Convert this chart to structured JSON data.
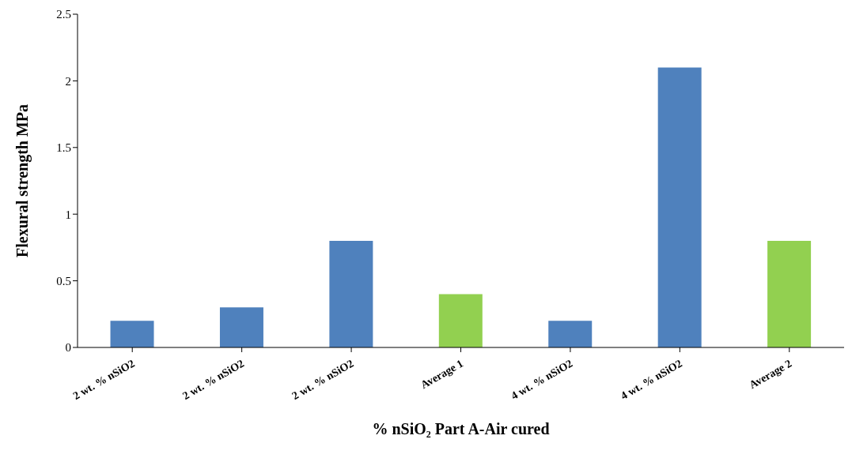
{
  "chart_data": {
    "type": "bar",
    "xlabel": "% nSiO₂ Part A-Air cured",
    "ylabel": "Flexural strength MPa",
    "categories": [
      "2 wt. % nSiO2",
      "2 wt. % nSiO2",
      "2 wt. % nSiO2",
      "Average 1",
      "4 wt. % nSiO2",
      "4 wt. % nSiO2",
      "Average 2"
    ],
    "values": [
      0.2,
      0.3,
      0.8,
      0.4,
      0.2,
      2.1,
      0.8
    ],
    "colors": [
      "#4f81bd",
      "#4f81bd",
      "#4f81bd",
      "#92d050",
      "#4f81bd",
      "#4f81bd",
      "#92d050"
    ],
    "ylim": [
      0,
      2.5
    ],
    "yticks": [
      0,
      0.5,
      1,
      1.5,
      2,
      2.5
    ],
    "grid": false,
    "legend": false
  }
}
